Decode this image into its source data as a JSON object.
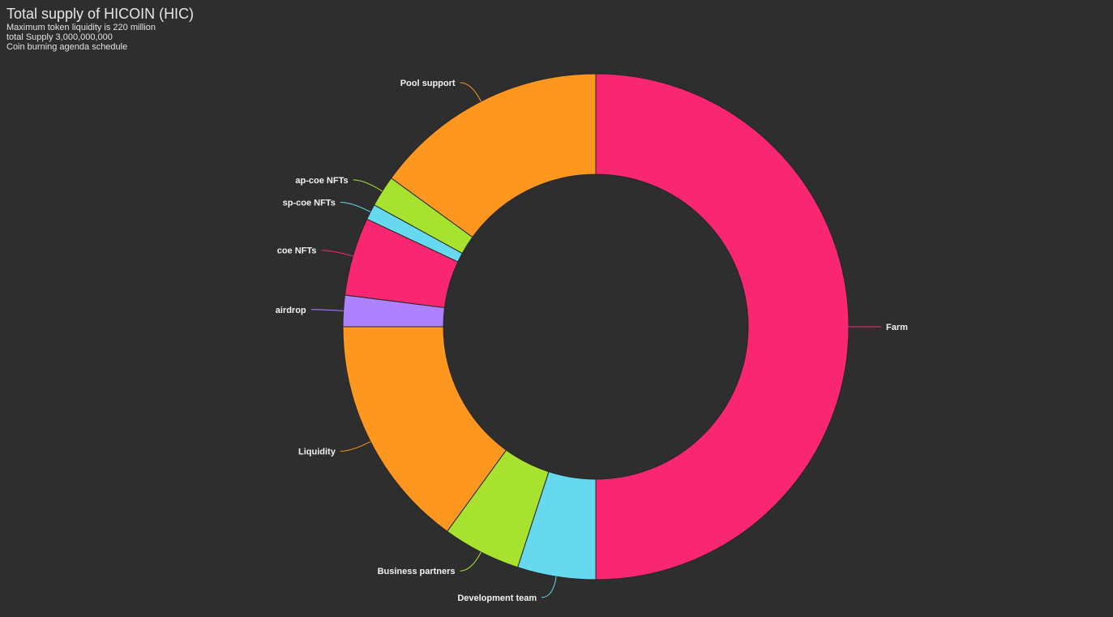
{
  "header": {
    "title": "Total supply of HICOIN (HIC)",
    "lines": [
      "Maximum token liquidity is 220 million",
      "total Supply 3,000,000,000",
      "Coin burning agenda schedule"
    ]
  },
  "chart_data": {
    "type": "pie",
    "variant": "donut",
    "title": "Total supply of HICOIN (HIC)",
    "slices": [
      {
        "label": "Farm",
        "value": 50,
        "color": "#f92672"
      },
      {
        "label": "Development team",
        "value": 5,
        "color": "#66d9ef"
      },
      {
        "label": "Business partners",
        "value": 5,
        "color": "#a6e22e"
      },
      {
        "label": "Liquidity",
        "value": 15,
        "color": "#fd971f"
      },
      {
        "label": "airdrop",
        "value": 2,
        "color": "#ae81ff"
      },
      {
        "label": "coe NFTs",
        "value": 5,
        "color": "#f92672"
      },
      {
        "label": "sp-coe NFTs",
        "value": 1,
        "color": "#66d9ef"
      },
      {
        "label": "ap-coe NFTs",
        "value": 2,
        "color": "#a6e22e"
      },
      {
        "label": "Pool support",
        "value": 15,
        "color": "#fd971f"
      }
    ]
  }
}
